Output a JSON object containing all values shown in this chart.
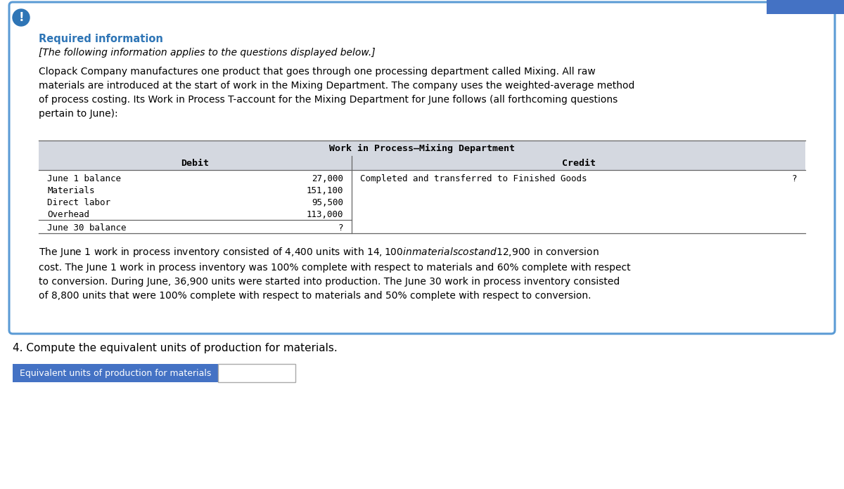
{
  "bg_color": "#ffffff",
  "outer_box_color": "#5b9bd5",
  "inner_box_bg": "#ffffff",
  "exclamation_circle_color": "#2e75b6",
  "required_info_color": "#2e75b6",
  "required_info_text": "Required information",
  "italic_text": "[The following information applies to the questions displayed below.]",
  "body_text": "Clopack Company manufactures one product that goes through one processing department called Mixing. All raw\nmaterials are introduced at the start of work in the Mixing Department. The company uses the weighted-average method\nof process costing. Its Work in Process T-account for the Mixing Department for June follows (all forthcoming questions\npertain to June):",
  "table_header": "Work in Process–Mixing Department",
  "table_header_bg": "#d4d8e0",
  "table_data_bg": "#ffffff",
  "debit_label": "Debit",
  "credit_label": "Credit",
  "debit_rows": [
    [
      "June 1 balance",
      "27,000"
    ],
    [
      "Materials",
      "151,100"
    ],
    [
      "Direct labor",
      "95,500"
    ],
    [
      "Overhead",
      "113,000"
    ]
  ],
  "debit_footer": [
    "June 30 balance",
    "?"
  ],
  "credit_rows": [
    [
      "Completed and transferred to Finished Goods",
      "?"
    ]
  ],
  "footnote_text": "The June 1 work in process inventory consisted of 4,400 units with $14,100 in materials cost and $12,900 in conversion\ncost. The June 1 work in process inventory was 100% complete with respect to materials and 60% complete with respect\nto conversion. During June, 36,900 units were started into production. The June 30 work in process inventory consisted\nof 8,800 units that were 100% complete with respect to materials and 50% complete with respect to conversion.",
  "question_text": "4. Compute the equivalent units of production for materials.",
  "answer_label": "Equivalent units of production for materials",
  "answer_label_bg": "#4472c4",
  "answer_label_color": "#ffffff",
  "answer_box_color": "#ffffff",
  "answer_box_border": "#aaaaaa",
  "top_right_bar_color": "#4472c4",
  "line_color": "#666666",
  "monospace_font": "DejaVu Sans Mono",
  "body_font": "DejaVu Sans"
}
